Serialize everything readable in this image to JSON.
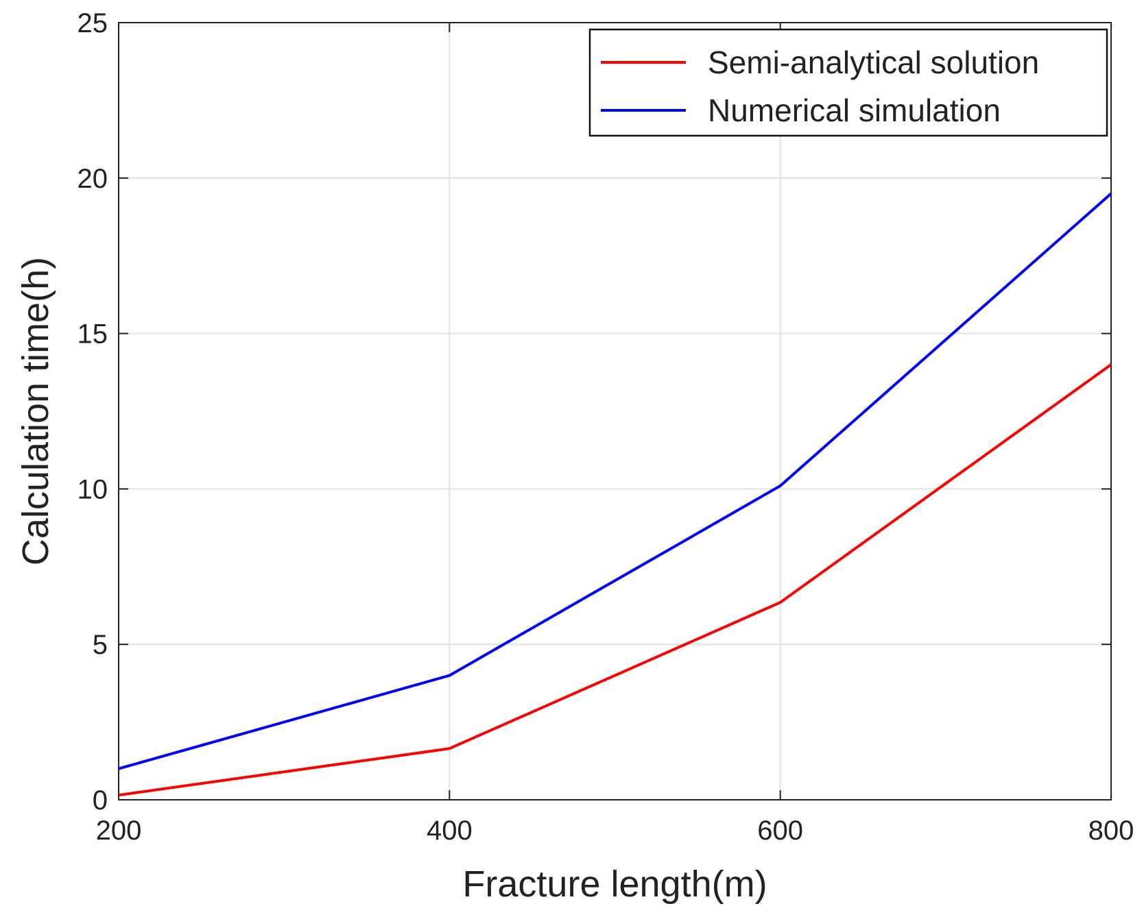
{
  "chart_data": {
    "type": "line",
    "xlabel": "Fracture length(m)",
    "ylabel": "Calculation time(h)",
    "x": [
      200,
      400,
      600,
      800
    ],
    "xlim": [
      200,
      800
    ],
    "ylim": [
      0,
      25
    ],
    "xticks": [
      "200",
      "400",
      "600",
      "800"
    ],
    "yticks": [
      "0",
      "5",
      "10",
      "15",
      "20",
      "25"
    ],
    "grid": true,
    "legend_position": "top-right",
    "series": [
      {
        "name": "Semi-analytical solution",
        "color": "#ff0000",
        "values": [
          0.15,
          1.65,
          6.35,
          14.0
        ]
      },
      {
        "name": "Numerical simulation",
        "color": "#0000ff",
        "values": [
          1.0,
          4.0,
          10.1,
          19.5
        ]
      }
    ]
  }
}
